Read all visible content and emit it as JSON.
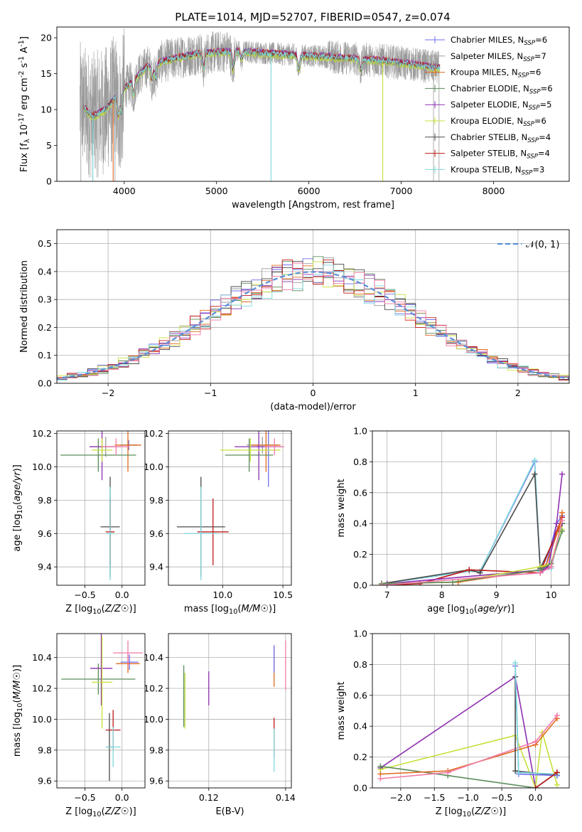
{
  "title": "PLATE=1014, MJD=52707, FIBERID=0547, z=0.074",
  "colors": [
    "#6d6df0",
    "#9a9a9a",
    "#e06a1e",
    "#5b8c5b",
    "#8e2fb0",
    "#c8e03a",
    "#4b4b4b",
    "#c01818",
    "#7fd8dc",
    "#f07aa6"
  ],
  "chart_data": [
    {
      "id": "spectrum",
      "type": "line",
      "xlabel": "wavelength [Angstrom, rest frame]",
      "ylabel": "Flux [f_λ 10^-17 erg cm^-2 s^-1 A^-1]",
      "xticks": [
        4000,
        5000,
        6000,
        7000,
        8000
      ],
      "yticks": [
        0,
        5,
        10,
        15,
        20
      ],
      "xlim": [
        3270,
        8820
      ],
      "ylim": [
        0,
        21.5
      ],
      "legend_position": "top-right",
      "series": [
        {
          "name": "Chabrier MILES, N_SSP=6"
        },
        {
          "name": "Salpeter MILES, N_SSP=7"
        },
        {
          "name": "Kroupa MILES, N_SSP=6"
        },
        {
          "name": "Chabrier ELODIE, N_SSP=6"
        },
        {
          "name": "Salpeter ELODIE, N_SSP=5"
        },
        {
          "name": "Kroupa ELODIE, N_SSP=6"
        },
        {
          "name": "Chabrier STELIB, N_SSP=4"
        },
        {
          "name": "Salpeter STELIB, N_SSP=4"
        },
        {
          "name": "Kroupa STELIB, N_SSP=3"
        }
      ],
      "continuum_profile": {
        "x": [
          3550,
          3650,
          3800,
          3950,
          4050,
          4250,
          4500,
          4800,
          5200,
          5600,
          6000,
          6400,
          6800,
          7200,
          7400
        ],
        "y": [
          10.5,
          9.0,
          10.0,
          12.5,
          13.5,
          16.0,
          17.0,
          17.8,
          18.2,
          17.8,
          17.5,
          17.2,
          16.8,
          16.2,
          15.8
        ]
      }
    },
    {
      "id": "residuals",
      "type": "histogram",
      "xlabel": "(data-model)/error",
      "ylabel": "Normed distribution",
      "xticks": [
        -2,
        -1,
        0,
        1,
        2
      ],
      "yticks": [
        0.0,
        0.1,
        0.2,
        0.3,
        0.4,
        0.5
      ],
      "xlim": [
        -2.5,
        2.5
      ],
      "ylim": [
        0,
        0.55
      ],
      "grid": true,
      "legend": "𝒩(0, 1)",
      "legend_position": "top-right"
    },
    {
      "id": "age_vs_Z",
      "type": "errorbar",
      "xlabel": "Z [log10(Z/Z☉)]",
      "ylabel": "age [log10(age/yr)]",
      "xticks": [
        -0.5,
        0.0
      ],
      "yticks": [
        9.4,
        9.6,
        9.8,
        10.0,
        10.2
      ],
      "xlim": [
        -0.88,
        0.31
      ],
      "ylim": [
        9.29,
        10.215
      ],
      "grid": true,
      "points": [
        {
          "c": 0,
          "x": 0.09,
          "y": 10.13,
          "ex": 0.12,
          "ey": 0.03
        },
        {
          "c": 1,
          "x": -0.22,
          "y": 10.12,
          "ex": 0.22,
          "ey": 0.06
        },
        {
          "c": 2,
          "x": 0.08,
          "y": 10.13,
          "ex": 0.18,
          "ey": 0.16
        },
        {
          "c": 3,
          "x": -0.32,
          "y": 10.07,
          "ex": 0.51,
          "ey": 0.1
        },
        {
          "c": 4,
          "x": -0.27,
          "y": 10.12,
          "ex": 0.17,
          "ey": 0.2
        },
        {
          "c": 5,
          "x": -0.27,
          "y": 10.1,
          "ex": 0.14,
          "ey": 0.07
        },
        {
          "c": 6,
          "x": -0.16,
          "y": 9.64,
          "ex": 0.13,
          "ey": 0.3
        },
        {
          "c": 7,
          "x": -0.16,
          "y": 9.61,
          "ex": 0.06,
          "ey": 0.2
        },
        {
          "c": 8,
          "x": -0.16,
          "y": 9.6,
          "ex": 0.05,
          "ey": 0.28
        },
        {
          "c": 9,
          "x": -0.08,
          "y": 10.12,
          "ex": 0.18,
          "ey": 0.05
        }
      ]
    },
    {
      "id": "age_vs_mass",
      "type": "errorbar",
      "xlabel": "mass [log10(M/M☉)]",
      "ylabel": "",
      "xticks": [
        10.0,
        10.5
      ],
      "yticks": [
        9.4,
        9.6,
        9.8,
        10.0,
        10.2
      ],
      "xlim": [
        9.55,
        10.57
      ],
      "ylim": [
        9.29,
        10.215
      ],
      "grid": true,
      "points": [
        {
          "c": 0,
          "x": 10.38,
          "y": 10.12,
          "ex": 0.1,
          "ey": 0.24
        },
        {
          "c": 1,
          "x": 10.33,
          "y": 10.13,
          "ex": 0.13,
          "ey": 0.05
        },
        {
          "c": 2,
          "x": 10.36,
          "y": 10.13,
          "ex": 0.12,
          "ey": 0.16
        },
        {
          "c": 3,
          "x": 10.22,
          "y": 10.07,
          "ex": 0.2,
          "ey": 0.1
        },
        {
          "c": 4,
          "x": 10.3,
          "y": 10.12,
          "ex": 0.2,
          "ey": 0.2
        },
        {
          "c": 5,
          "x": 10.23,
          "y": 10.1,
          "ex": 0.25,
          "ey": 0.07
        },
        {
          "c": 6,
          "x": 9.82,
          "y": 9.64,
          "ex": 0.2,
          "ey": 0.3
        },
        {
          "c": 7,
          "x": 9.92,
          "y": 9.61,
          "ex": 0.13,
          "ey": 0.2
        },
        {
          "c": 8,
          "x": 9.82,
          "y": 9.6,
          "ex": 0.14,
          "ey": 0.28
        },
        {
          "c": 9,
          "x": 10.43,
          "y": 10.12,
          "ex": 0.08,
          "ey": 0.05
        }
      ]
    },
    {
      "id": "weight_vs_age",
      "type": "line",
      "xlabel": "age [log10(age/yr)]",
      "ylabel": "mass weight",
      "xticks": [
        7,
        8,
        9,
        10
      ],
      "yticks": [
        0.0,
        0.2,
        0.4,
        0.6,
        0.8,
        1.0
      ],
      "xlim": [
        6.73,
        10.33
      ],
      "ylim": [
        0,
        1.0
      ],
      "grid": true,
      "series": [
        {
          "c": 0,
          "x": [
            6.9,
            8.5,
            8.7,
            9.7,
            9.8,
            9.9,
            10.1,
            10.2
          ],
          "y": [
            0.01,
            0.09,
            0.09,
            0.8,
            0.1,
            0.12,
            0.4,
            0.45
          ]
        },
        {
          "c": 8,
          "x": [
            6.9,
            8.5,
            8.7,
            9.7,
            9.8,
            10.0,
            10.2
          ],
          "y": [
            0.01,
            0.09,
            0.09,
            0.81,
            0.09,
            0.11,
            0.4
          ]
        },
        {
          "c": 6,
          "x": [
            6.9,
            8.5,
            8.7,
            9.7,
            9.8,
            10.2
          ],
          "y": [
            0.01,
            0.1,
            0.08,
            0.72,
            0.11,
            0.4
          ]
        },
        {
          "c": 7,
          "x": [
            6.9,
            7.6,
            8.5,
            9.8,
            10.2
          ],
          "y": [
            0.0,
            0.01,
            0.1,
            0.08,
            0.44
          ]
        },
        {
          "c": 2,
          "x": [
            6.9,
            8.3,
            9.8,
            9.9,
            10.15,
            10.2
          ],
          "y": [
            0.01,
            0.02,
            0.1,
            0.12,
            0.38,
            0.47
          ]
        },
        {
          "c": 4,
          "x": [
            7.0,
            9.85,
            9.95,
            10.1,
            10.2
          ],
          "y": [
            0.01,
            0.1,
            0.12,
            0.4,
            0.72
          ]
        },
        {
          "c": 5,
          "x": [
            6.9,
            8.2,
            9.8,
            10.0,
            10.15,
            10.2
          ],
          "y": [
            0.01,
            0.02,
            0.12,
            0.14,
            0.34,
            0.36
          ]
        },
        {
          "c": 3,
          "x": [
            6.9,
            8.2,
            9.8,
            10.0,
            10.2
          ],
          "y": [
            0.01,
            0.02,
            0.1,
            0.14,
            0.35
          ]
        },
        {
          "c": 9,
          "x": [
            6.9,
            9.8,
            10.0,
            10.2
          ],
          "y": [
            0.0,
            0.08,
            0.12,
            0.42
          ]
        }
      ]
    },
    {
      "id": "mass_vs_Z",
      "type": "errorbar",
      "xlabel": "Z [log10(Z/Z☉)]",
      "ylabel": "mass [log10(M/M☉)]",
      "xticks": [
        -0.5,
        0.0
      ],
      "yticks": [
        9.6,
        9.8,
        10.0,
        10.2,
        10.4
      ],
      "xlim": [
        -0.88,
        0.31
      ],
      "ylim": [
        9.555,
        10.555
      ],
      "grid": true,
      "points": [
        {
          "c": 0,
          "x": 0.1,
          "y": 10.37,
          "ex": 0.12,
          "ey": 0.05
        },
        {
          "c": 2,
          "x": 0.08,
          "y": 10.36,
          "ex": 0.16,
          "ey": 0.06
        },
        {
          "c": 9,
          "x": 0.08,
          "y": 10.43,
          "ex": 0.2,
          "ey": 0.08
        },
        {
          "c": 3,
          "x": -0.32,
          "y": 10.26,
          "ex": 0.5,
          "ey": 0.1
        },
        {
          "c": 4,
          "x": -0.28,
          "y": 10.33,
          "ex": 0.15,
          "ey": 0.24
        },
        {
          "c": 5,
          "x": -0.27,
          "y": 10.24,
          "ex": 0.14,
          "ey": 0.3
        },
        {
          "c": 6,
          "x": -0.17,
          "y": 9.82,
          "ex": 0.04,
          "ey": 0.22
        },
        {
          "c": 7,
          "x": -0.12,
          "y": 9.93,
          "ex": 0.1,
          "ey": 0.13
        },
        {
          "c": 8,
          "x": -0.12,
          "y": 9.82,
          "ex": 0.1,
          "ey": 0.13
        }
      ]
    },
    {
      "id": "mass_vs_EBV",
      "type": "errorbar",
      "xlabel": "E(B-V)",
      "ylabel": "",
      "xticks": [
        0.12,
        0.14
      ],
      "yticks": [
        9.6,
        9.8,
        10.0,
        10.2,
        10.4
      ],
      "xlim": [
        0.1095,
        0.1415
      ],
      "ylim": [
        9.555,
        10.555
      ],
      "grid": true,
      "points": [
        {
          "c": 3,
          "x": 0.1135,
          "y": 10.15,
          "ex": 0,
          "ey": 0.2
        },
        {
          "c": 5,
          "x": 0.1138,
          "y": 10.12,
          "ex": 0,
          "ey": 0.18
        },
        {
          "c": 4,
          "x": 0.12,
          "y": 10.2,
          "ex": 0,
          "ey": 0.11
        },
        {
          "c": 2,
          "x": 0.137,
          "y": 10.34,
          "ex": 0,
          "ey": 0.13
        },
        {
          "c": 0,
          "x": 0.137,
          "y": 10.39,
          "ex": 0,
          "ey": 0.09
        },
        {
          "c": 7,
          "x": 0.137,
          "y": 9.88,
          "ex": 0,
          "ey": 0.13
        },
        {
          "c": 8,
          "x": 0.137,
          "y": 9.8,
          "ex": 0,
          "ey": 0.14
        },
        {
          "c": 9,
          "x": 0.14,
          "y": 10.35,
          "ex": 0,
          "ey": 0.16
        }
      ]
    },
    {
      "id": "weight_vs_Z",
      "type": "line",
      "xlabel": "Z [log10(Z/Z☉)]",
      "ylabel": "mass weight",
      "xticks": [
        -2.0,
        -1.5,
        -1.0,
        -0.5,
        0.0
      ],
      "yticks": [
        0.0,
        0.2,
        0.4,
        0.6,
        0.8,
        1.0
      ],
      "xlim": [
        -2.42,
        0.5
      ],
      "ylim": [
        0,
        1.0
      ],
      "grid": true,
      "series": [
        {
          "c": 4,
          "x": [
            -2.3,
            -0.3,
            0.0,
            0.32
          ],
          "y": [
            0.13,
            0.72,
            0.0,
            0.1
          ]
        },
        {
          "c": 5,
          "x": [
            -2.3,
            -0.3,
            0.0,
            0.1,
            0.32
          ],
          "y": [
            0.12,
            0.34,
            0.0,
            0.36,
            0.02
          ]
        },
        {
          "c": 3,
          "x": [
            -2.3,
            -1.3,
            0.0,
            0.32
          ],
          "y": [
            0.14,
            0.08,
            0.0,
            0.1
          ]
        },
        {
          "c": 2,
          "x": [
            -2.3,
            -1.3,
            0.0,
            0.32
          ],
          "y": [
            0.09,
            0.11,
            0.28,
            0.45
          ]
        },
        {
          "c": 9,
          "x": [
            -2.3,
            -1.3,
            0.0,
            0.32
          ],
          "y": [
            0.06,
            0.1,
            0.3,
            0.47
          ]
        },
        {
          "c": 6,
          "x": [
            -0.3,
            -0.3,
            0.32
          ],
          "y": [
            0.72,
            0.11,
            0.08
          ]
        },
        {
          "c": 0,
          "x": [
            -0.3,
            -0.25,
            0.32
          ],
          "y": [
            0.79,
            0.09,
            0.08
          ]
        },
        {
          "c": 8,
          "x": [
            -0.3,
            -0.25,
            0.32
          ],
          "y": [
            0.81,
            0.1,
            0.09
          ]
        },
        {
          "c": 7,
          "x": [
            0.0,
            0.32
          ],
          "y": [
            0.0,
            0.1
          ]
        }
      ]
    }
  ]
}
